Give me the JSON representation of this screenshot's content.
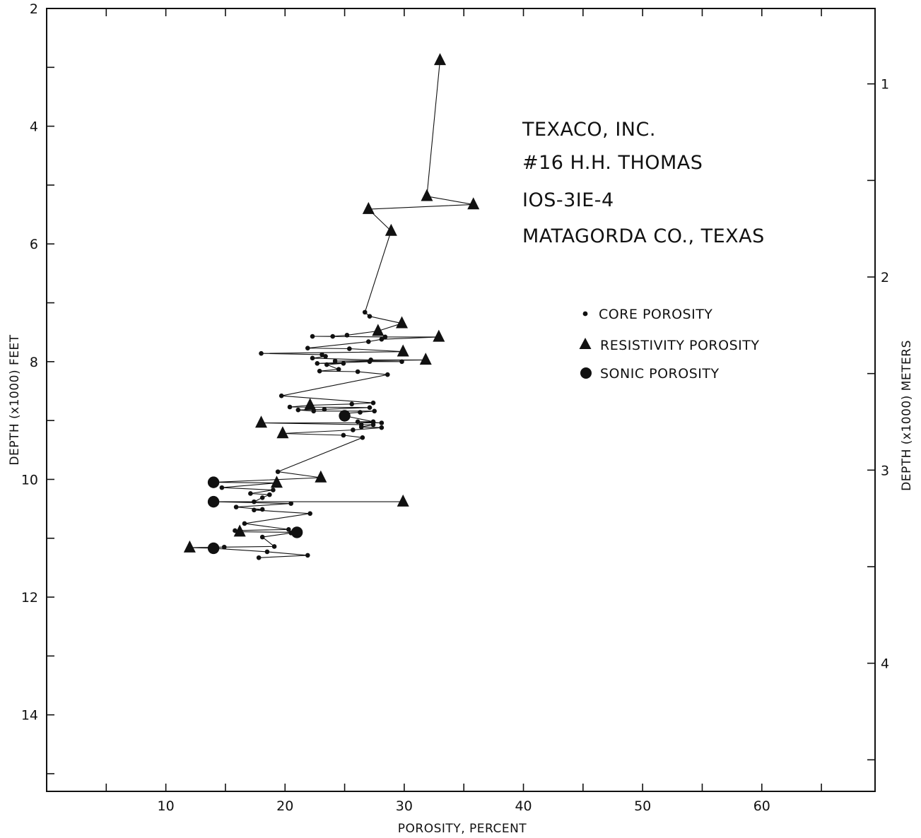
{
  "chart_data": {
    "type": "scatter",
    "title": "",
    "xlabel": "POROSITY, PERCENT",
    "ylabel": "DEPTH (x1000) FEET",
    "ylabel_right": "DEPTH (x1000) METERS",
    "xlim": [
      0,
      69.5
    ],
    "ylim": [
      2,
      15.3
    ],
    "y_inverted": true,
    "x_ticks": [
      10,
      20,
      30,
      40,
      50,
      60
    ],
    "y_ticks": [
      2,
      4,
      6,
      8,
      10,
      12,
      14
    ],
    "y_right_ticks": [
      1,
      2,
      3,
      4
    ],
    "grid": false,
    "legend_position": "right-center",
    "annotation": [
      "TEXACO, INC.",
      "#16 H.H. THOMAS",
      "IOS-3IE-4",
      "MATAGORDA CO., TEXAS"
    ],
    "series": [
      {
        "name": "CORE POROSITY",
        "marker": "dot",
        "x": [
          26.7,
          27.1,
          24.0,
          22.3,
          25.2,
          28.4,
          28.1,
          27.0,
          25.4,
          21.9,
          23.1,
          18.0,
          22.3,
          23.4,
          24.2,
          27.2,
          29.8,
          27.1,
          22.7,
          24.9,
          23.5,
          24.5,
          22.9,
          26.1,
          28.6,
          19.7,
          27.4,
          25.6,
          20.4,
          27.1,
          22.4,
          27.5,
          21.1,
          23.3,
          26.3,
          24.9,
          27.4,
          26.1,
          28.1,
          26.4,
          27.4,
          26.4,
          28.1,
          25.7,
          24.9,
          26.5,
          19.4,
          14.7,
          19.0,
          17.1,
          18.7,
          18.1,
          17.4,
          20.5,
          15.9,
          18.1,
          17.4,
          22.1,
          16.6,
          20.3,
          15.8,
          20.5,
          18.1,
          14.9,
          19.1,
          18.5,
          21.9,
          17.8
        ],
        "y": [
          7.16,
          7.23,
          7.57,
          7.57,
          7.55,
          7.58,
          7.62,
          7.66,
          7.78,
          7.77,
          7.88,
          7.86,
          7.94,
          7.91,
          7.99,
          7.97,
          8.0,
          8.0,
          8.03,
          8.03,
          8.05,
          8.13,
          8.16,
          8.17,
          8.22,
          8.58,
          8.7,
          8.72,
          8.77,
          8.78,
          8.84,
          8.84,
          8.82,
          8.81,
          8.86,
          8.88,
          9.02,
          9.02,
          9.04,
          9.07,
          9.07,
          9.11,
          9.12,
          9.16,
          9.25,
          9.29,
          9.87,
          10.14,
          10.18,
          10.24,
          10.26,
          10.31,
          10.38,
          10.41,
          10.47,
          10.51,
          10.52,
          10.58,
          10.75,
          10.85,
          10.87,
          10.91,
          10.98,
          11.15,
          11.14,
          11.23,
          11.29,
          11.33
        ]
      },
      {
        "name": "RESISTIVITY POROSITY",
        "marker": "triangle",
        "x": [
          33.0,
          31.9,
          35.8,
          27.0,
          28.9,
          29.8,
          27.8,
          32.9,
          29.9,
          31.8,
          22.1,
          18.0,
          19.8,
          23.0,
          19.3,
          29.9,
          16.2,
          12.0
        ],
        "y": [
          2.88,
          5.19,
          5.33,
          5.41,
          5.78,
          7.35,
          7.48,
          7.58,
          7.83,
          7.97,
          8.74,
          9.04,
          9.22,
          9.97,
          10.06,
          10.38,
          10.89,
          11.16
        ]
      },
      {
        "name": "SONIC POROSITY",
        "marker": "circle",
        "x": [
          25.0,
          14.0,
          14.0,
          21.0,
          14.0
        ],
        "y": [
          8.92,
          10.05,
          10.38,
          10.9,
          11.17
        ]
      }
    ]
  }
}
